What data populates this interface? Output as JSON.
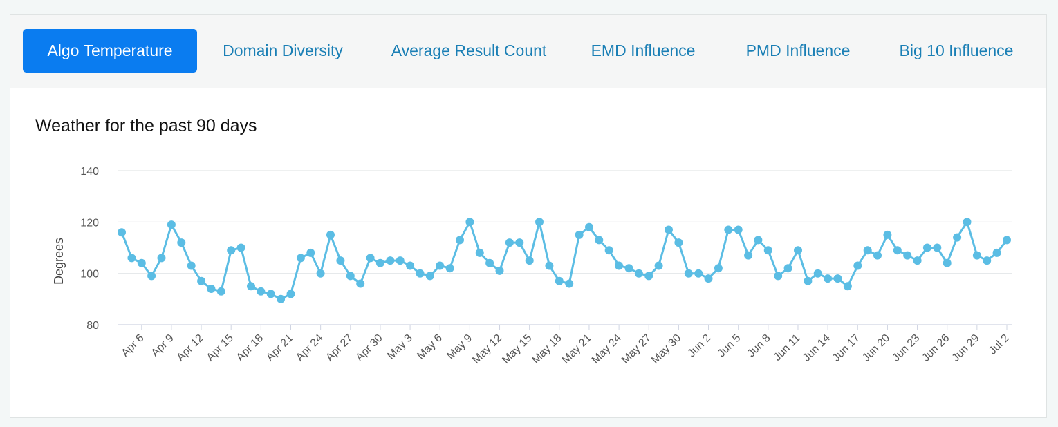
{
  "tabs": [
    {
      "label": "Algo Temperature",
      "active": true
    },
    {
      "label": "Domain Diversity",
      "active": false
    },
    {
      "label": "Average Result Count",
      "active": false
    },
    {
      "label": "EMD Influence",
      "active": false
    },
    {
      "label": "PMD Influence",
      "active": false
    },
    {
      "label": "Big 10 Influence",
      "active": false
    }
  ],
  "colors": {
    "accent": "#0a7cf0",
    "tab_text": "#1a7fb5",
    "series": "#5bbde4",
    "grid": "#e3e6e8"
  },
  "chart_data": {
    "type": "line",
    "title": "Weather for the past 90 days",
    "xlabel": "",
    "ylabel": "Degrees",
    "ylim": [
      80,
      140
    ],
    "yticks": [
      80,
      100,
      120,
      140
    ],
    "grid": true,
    "x_tick_labels": [
      "Apr 6",
      "Apr 9",
      "Apr 12",
      "Apr 15",
      "Apr 18",
      "Apr 21",
      "Apr 24",
      "Apr 27",
      "Apr 30",
      "May 3",
      "May 6",
      "May 9",
      "May 12",
      "May 15",
      "May 18",
      "May 21",
      "May 24",
      "May 27",
      "May 30",
      "Jun 2",
      "Jun 5",
      "Jun 8",
      "Jun 11",
      "Jun 14",
      "Jun 17",
      "Jun 20",
      "Jun 23",
      "Jun 26",
      "Jun 29",
      "Jul 2"
    ],
    "x": [
      "Apr 4",
      "Apr 5",
      "Apr 6",
      "Apr 7",
      "Apr 8",
      "Apr 9",
      "Apr 10",
      "Apr 11",
      "Apr 12",
      "Apr 13",
      "Apr 14",
      "Apr 15",
      "Apr 16",
      "Apr 17",
      "Apr 18",
      "Apr 19",
      "Apr 20",
      "Apr 21",
      "Apr 22",
      "Apr 23",
      "Apr 24",
      "Apr 25",
      "Apr 26",
      "Apr 27",
      "Apr 28",
      "Apr 29",
      "Apr 30",
      "May 1",
      "May 2",
      "May 3",
      "May 4",
      "May 5",
      "May 6",
      "May 7",
      "May 8",
      "May 9",
      "May 10",
      "May 11",
      "May 12",
      "May 13",
      "May 14",
      "May 15",
      "May 16",
      "May 17",
      "May 18",
      "May 19",
      "May 20",
      "May 21",
      "May 22",
      "May 23",
      "May 24",
      "May 25",
      "May 26",
      "May 27",
      "May 28",
      "May 29",
      "May 30",
      "May 31",
      "Jun 1",
      "Jun 2",
      "Jun 3",
      "Jun 4",
      "Jun 5",
      "Jun 6",
      "Jun 7",
      "Jun 8",
      "Jun 9",
      "Jun 10",
      "Jun 11",
      "Jun 12",
      "Jun 13",
      "Jun 14",
      "Jun 15",
      "Jun 16",
      "Jun 17",
      "Jun 18",
      "Jun 19",
      "Jun 20",
      "Jun 21",
      "Jun 22",
      "Jun 23",
      "Jun 24",
      "Jun 25",
      "Jun 26",
      "Jun 27",
      "Jun 28",
      "Jun 29",
      "Jun 30",
      "Jul 1",
      "Jul 2"
    ],
    "series": [
      {
        "values": [
          116,
          106,
          104,
          99,
          106,
          119,
          112,
          103,
          97,
          94,
          93,
          109,
          110,
          95,
          93,
          92,
          90,
          92,
          106,
          108,
          100,
          115,
          105,
          99,
          96,
          106,
          104,
          105,
          105,
          103,
          100,
          99,
          103,
          102,
          113,
          120,
          108,
          104,
          101,
          112,
          112,
          105,
          120,
          103,
          97,
          96,
          115,
          118,
          113,
          109,
          103,
          102,
          100,
          99,
          103,
          117,
          112,
          100,
          100,
          98,
          102,
          117,
          117,
          107,
          113,
          109,
          99,
          102,
          109,
          97,
          100,
          98,
          98,
          95,
          103,
          109,
          107,
          115,
          109,
          107,
          105,
          110,
          110,
          104,
          114,
          120,
          107,
          105,
          108,
          113
        ]
      }
    ]
  }
}
